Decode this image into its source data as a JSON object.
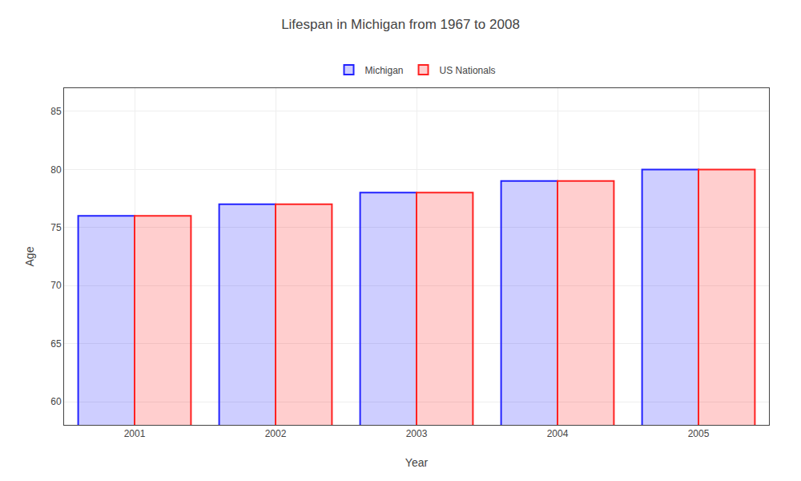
{
  "chart_data": {
    "type": "bar",
    "title": "Lifespan in Michigan from 1967 to 2008",
    "xlabel": "Year",
    "ylabel": "Age",
    "categories": [
      "2001",
      "2002",
      "2003",
      "2004",
      "2005"
    ],
    "series": [
      {
        "name": "Michigan",
        "color": "#2222ff",
        "values": [
          76,
          77,
          78,
          79,
          80
        ]
      },
      {
        "name": "US Nationals",
        "color": "#ff2222",
        "values": [
          76,
          77,
          78,
          79,
          80
        ]
      }
    ],
    "ylim": [
      58,
      87
    ],
    "yticks": [
      60,
      65,
      70,
      75,
      80,
      85
    ],
    "grid": true,
    "legend": "top"
  }
}
